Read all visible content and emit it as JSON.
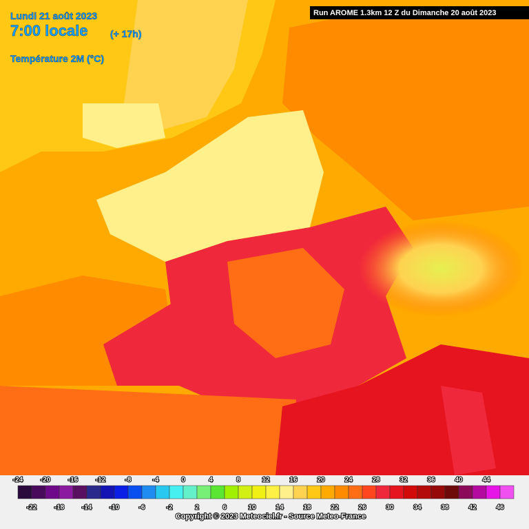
{
  "header": {
    "date": "Lundi 21 août 2023",
    "time": "7:00 locale",
    "lead": "(+ 17h)",
    "variable": "Température 2M (°C)"
  },
  "run": "Run AROME 1.3km 12 Z du Dimanche 20 août 2023",
  "legend": {
    "top_labels": [
      -24,
      -20,
      -16,
      -12,
      -8,
      -4,
      0,
      4,
      8,
      12,
      16,
      20,
      24,
      28,
      32,
      36,
      40,
      44
    ],
    "bottom_labels": [
      -22,
      -18,
      -14,
      -10,
      -6,
      -2,
      2,
      6,
      10,
      14,
      18,
      22,
      26,
      30,
      34,
      38,
      42,
      46
    ],
    "colors": [
      "#2a0a3c",
      "#4a0a5c",
      "#6e0a8a",
      "#8c1aa0",
      "#5a1060",
      "#2a2a8c",
      "#1414b4",
      "#0a1ee6",
      "#0a50f0",
      "#1e8cf0",
      "#28c8f0",
      "#46f0f0",
      "#64f0c8",
      "#78f078",
      "#5ae632",
      "#a0f000",
      "#d2f014",
      "#f0f014",
      "#fff046",
      "#fff08c",
      "#ffd250",
      "#ffc814",
      "#ffaa00",
      "#ff8c00",
      "#ff6e14",
      "#ff461e",
      "#f0283c",
      "#e6141e",
      "#d20a0a",
      "#b40a0a",
      "#960a0a",
      "#6e0a0a",
      "#8c0a5a",
      "#b40aa0",
      "#e614e6",
      "#f050f0"
    ]
  },
  "copyright": "Copyright © 2023 Meteociel.fr - Source Meteo-France"
}
